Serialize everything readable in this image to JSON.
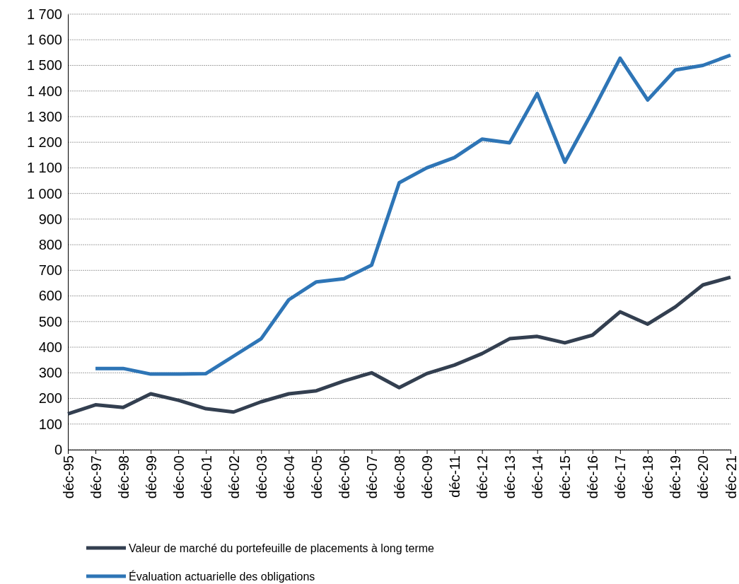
{
  "chart_data": {
    "type": "line",
    "categories": [
      "déc-95",
      "déc-97",
      "déc-98",
      "déc-99",
      "déc-00",
      "déc-01",
      "déc-02",
      "déc-03",
      "déc-04",
      "déc-05",
      "déc-06",
      "déc-07",
      "déc-08",
      "déc-09",
      "déc-11",
      "déc-12",
      "déc-13",
      "déc-14",
      "déc-15",
      "déc-16",
      "déc-17",
      "déc-18",
      "déc-19",
      "déc-20",
      "déc-21"
    ],
    "series": [
      {
        "name": "Valeur de marché du portefeuille de placements à long terme",
        "color": "#333f50",
        "values": [
          140,
          175,
          165,
          218,
          193,
          160,
          147,
          187,
          218,
          230,
          268,
          300,
          242,
          297,
          330,
          375,
          433,
          442,
          417,
          447,
          538,
          490,
          557,
          643,
          673
        ]
      },
      {
        "name": "Évaluation actuarielle des obligations",
        "color": "#2e75b6",
        "values": [
          null,
          317,
          317,
          295,
          295,
          297,
          365,
          433,
          585,
          655,
          667,
          720,
          1042,
          1100,
          1140,
          1212,
          1198,
          1390,
          1122,
          1320,
          1528,
          1365,
          1482,
          1500,
          1540
        ]
      }
    ],
    "ylim": [
      0,
      1700
    ],
    "yticks": [
      0,
      100,
      200,
      300,
      400,
      500,
      600,
      700,
      800,
      900,
      1000,
      1100,
      1200,
      1300,
      1400,
      1500,
      1600,
      1700
    ],
    "grid": "y",
    "legend": "bottom",
    "marker": "none",
    "line_style": "solid"
  }
}
